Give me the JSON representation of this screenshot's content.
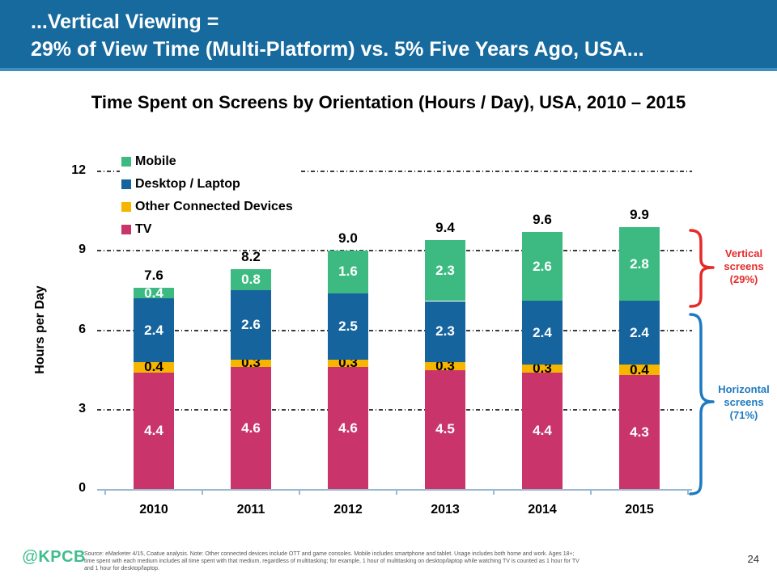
{
  "header": {
    "line1": "...Vertical Viewing =",
    "line2": "29% of View Time (Multi-Platform) vs. 5% Five Years Ago, USA...",
    "background": "#176a9e"
  },
  "chart_data": {
    "type": "bar",
    "stacked": true,
    "title": "Time Spent on Screens by Orientation (Hours / Day), USA, 2010 – 2015",
    "ylabel": "Hours per Day",
    "ylim": [
      0,
      12
    ],
    "ytick_labels": [
      "12",
      "9",
      "6",
      "3",
      "0"
    ],
    "grid": "dashed-horizontal",
    "legend_position": "top-left-inside",
    "categories": [
      "2010",
      "2011",
      "2012",
      "2013",
      "2014",
      "2015"
    ],
    "series": [
      {
        "name": "TV",
        "color": "#c9356a",
        "label_color": "#ffffff",
        "values": [
          "4.4",
          "4.6",
          "4.6",
          "4.5",
          "4.4",
          "4.3"
        ]
      },
      {
        "name": "Other Connected Devices",
        "color": "#f6b600",
        "label_color": "#000000",
        "values": [
          "0.4",
          "0.3",
          "0.3",
          "0.3",
          "0.3",
          "0.4"
        ]
      },
      {
        "name": "Desktop / Laptop",
        "color": "#16649e",
        "label_color": "#ffffff",
        "values": [
          "2.4",
          "2.6",
          "2.5",
          "2.3",
          "2.4",
          "2.4"
        ]
      },
      {
        "name": "Mobile",
        "color": "#3cba82",
        "label_color": "#ffffff",
        "values": [
          "0.4",
          "0.8",
          "1.6",
          "2.3",
          "2.6",
          "2.8"
        ]
      }
    ],
    "totals": [
      "7.6",
      "8.2",
      "9.0",
      "9.4",
      "9.6",
      "9.9"
    ],
    "legend": [
      {
        "label": "Mobile",
        "color": "#3cba82"
      },
      {
        "label": "Desktop / Laptop",
        "color": "#16649e"
      },
      {
        "label": "Other Connected Devices",
        "color": "#f6b600"
      },
      {
        "label": "TV",
        "color": "#c9356a"
      }
    ]
  },
  "annotations": {
    "vertical": {
      "lines": [
        "Vertical",
        "screens",
        "(29%)"
      ],
      "color": "#e62a2a"
    },
    "horizontal": {
      "lines": [
        "Horizontal",
        "screens",
        "(71%)"
      ],
      "color": "#1e7ac1"
    }
  },
  "footer": {
    "logo_at": "@",
    "logo_text": "KPCB",
    "logo_color": "#3fbe8d",
    "source_lines": [
      "Source: eMarketer 4/15, Coatue analysis. Note: Other connected devices include OTT and game consoles. Mobile includes smartphone and tablet. Usage includes both home and work. Ages 18+;",
      "time spent with each medium includes all time spent with that medium, regardless of multitasking; for example, 1 hour of multitasking on desktop/laptop while watching TV is counted as 1 hour for TV",
      "and 1 hour for desktop/laptop."
    ],
    "page_number": "24"
  }
}
